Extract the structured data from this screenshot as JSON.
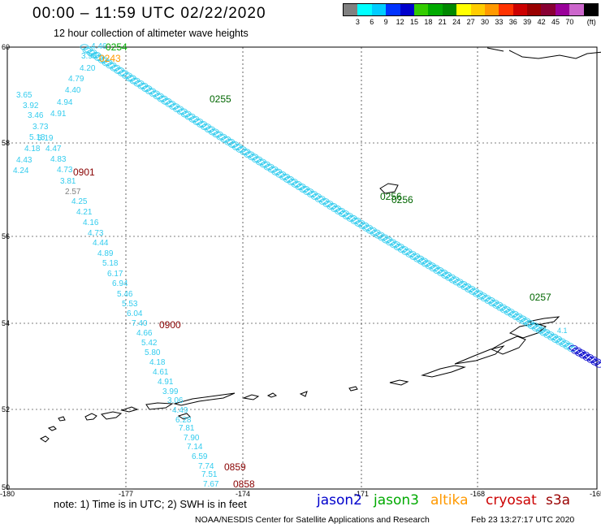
{
  "title": "00:00 – 11:59 UTC 02/22/2020",
  "subtitle": "12 hour collection of altimeter wave heights",
  "legend": {
    "colors": [
      "#808080",
      "#00ffff",
      "#00ccff",
      "#0033ff",
      "#0000cc",
      "#33cc00",
      "#00aa00",
      "#008800",
      "#ffff00",
      "#ffcc00",
      "#ff9900",
      "#ff3300",
      "#cc0000",
      "#990000",
      "#880033",
      "#990099",
      "#cc66cc",
      "#000000"
    ],
    "labels": [
      "3",
      "6",
      "9",
      "12",
      "15",
      "18",
      "21",
      "24",
      "27",
      "30",
      "33",
      "36",
      "39",
      "42",
      "45",
      "70"
    ],
    "unit": "(ft)"
  },
  "map": {
    "lat_ticks": [
      "60",
      "58",
      "56",
      "54",
      "52",
      "50"
    ],
    "lon_ticks": [
      "-180",
      "-177",
      "-174",
      "-171",
      "-168",
      "-165"
    ]
  },
  "west_track": {
    "color": "#33ccee",
    "values": [
      "4.46",
      "3.98",
      "4.20",
      "4.79",
      "4.40",
      "4.94",
      "4.91",
      "3.65",
      "3.92",
      "3.46",
      "3.73",
      "5.18",
      "5.19",
      "4.18",
      "4.47",
      "4.43",
      "4.83",
      "4.24",
      "4.73",
      "3.81",
      "2.57",
      "4.25",
      "4.21",
      "4.16",
      "4.73",
      "4.44",
      "4.89",
      "5.18",
      "6.17",
      "6.94",
      "5.46",
      "5.53",
      "6.04",
      "7.40",
      "4.66",
      "5.42",
      "5.80",
      "4.18",
      "4.61",
      "4.91",
      "3.99",
      "3.06",
      "4.49",
      "6.28",
      "7.81",
      "7.90",
      "7.14",
      "6.59",
      "7.74",
      "7.51",
      "7.67"
    ],
    "time_labels": [
      "0901",
      "0900",
      "0859",
      "0858"
    ]
  },
  "east_track": {
    "time_labels": [
      "0255",
      "0256",
      "0256",
      "0257",
      "0254",
      "0243"
    ],
    "value": "4.1"
  },
  "footer": {
    "note": "note:  1) Time is in UTC;  2) SWH is in feet",
    "satellites": [
      {
        "name": "jason2",
        "color": "#0000cc"
      },
      {
        "name": "jason3",
        "color": "#00aa00"
      },
      {
        "name": "altika",
        "color": "#ff9900"
      },
      {
        "name": "cryosat",
        "color": "#cc0000"
      },
      {
        "name": "s3a",
        "color": "#990000"
      }
    ],
    "credit": "NOAA/NESDIS Center for Satellite Applications and Research",
    "timestamp": "Feb 23 13:27:17 UTC 2020"
  }
}
